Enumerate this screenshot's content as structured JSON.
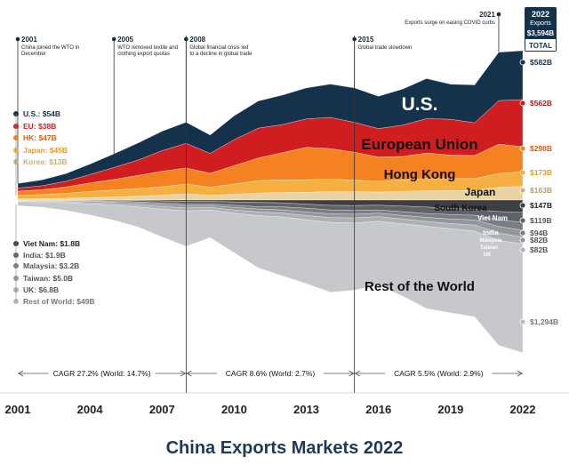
{
  "chart_data": {
    "type": "area",
    "title": "China Exports Markets 2022",
    "stacking": "streamgraph",
    "x_ticks": [
      "2001",
      "2004",
      "2007",
      "2010",
      "2013",
      "2016",
      "2019",
      "2022"
    ],
    "x": [
      2001,
      2002,
      2003,
      2004,
      2005,
      2006,
      2007,
      2008,
      2009,
      2010,
      2011,
      2012,
      2013,
      2014,
      2015,
      2016,
      2017,
      2018,
      2019,
      2020,
      2021,
      2022
    ],
    "units": "US$ billions",
    "series": [
      {
        "name": "U.S.",
        "color": "#15324d",
        "label": "U.S.",
        "start_label": "U.S.: $54B",
        "end_label": "$582B",
        "values": [
          54,
          70,
          92,
          125,
          163,
          203,
          232,
          252,
          220,
          283,
          324,
          352,
          369,
          397,
          410,
          385,
          430,
          478,
          418,
          451,
          576,
          582
        ]
      },
      {
        "name": "European Union",
        "color": "#d01e20",
        "label": "European Union",
        "start_label": "EU: $38B",
        "end_label": "$562B",
        "values": [
          38,
          47,
          67,
          100,
          143,
          183,
          245,
          293,
          236,
          311,
          356,
          334,
          339,
          371,
          356,
          339,
          372,
          409,
          428,
          390,
          518,
          562
        ]
      },
      {
        "name": "Hong Kong",
        "color": "#f58220",
        "label": "Hong Kong",
        "start_label": "HK: $47B",
        "end_label": "$298B",
        "values": [
          47,
          58,
          76,
          101,
          125,
          155,
          184,
          191,
          166,
          218,
          268,
          323,
          385,
          363,
          331,
          288,
          279,
          303,
          279,
          273,
          350,
          298
        ]
      },
      {
        "name": "Japan",
        "color": "#f6b042",
        "label": "Japan",
        "start_label": "Japan: $45B",
        "end_label": "$173B",
        "values": [
          45,
          48,
          59,
          74,
          84,
          92,
          102,
          116,
          98,
          121,
          148,
          152,
          150,
          149,
          136,
          129,
          137,
          147,
          143,
          143,
          166,
          173
        ]
      },
      {
        "name": "Korea",
        "color": "#e9d3a4",
        "label": "South Korea",
        "start_label": "Korea: $13B",
        "end_label": "$163B",
        "values": [
          13,
          16,
          20,
          28,
          35,
          45,
          56,
          74,
          54,
          69,
          83,
          88,
          91,
          100,
          101,
          94,
          103,
          109,
          111,
          113,
          149,
          163
        ]
      },
      {
        "name": "Viet Nam",
        "color": "#3d3f44",
        "label": "Viet Nam",
        "start_label": "Viet Nam: $1.8B",
        "end_label": "$147B",
        "values": [
          1.8,
          2.1,
          3.2,
          4.3,
          5.6,
          7.5,
          12,
          15,
          16,
          23,
          29,
          34,
          49,
          64,
          66,
          61,
          72,
          84,
          98,
          114,
          138,
          147
        ]
      },
      {
        "name": "India",
        "color": "#5f6268",
        "label": "India",
        "start_label": "India: $1.9B",
        "end_label": "$119B",
        "values": [
          1.9,
          2.7,
          3.3,
          5.9,
          8.9,
          14.6,
          24,
          32,
          30,
          41,
          50,
          48,
          48,
          54,
          58,
          58,
          68,
          77,
          75,
          67,
          98,
          119
        ]
      },
      {
        "name": "Malaysia",
        "color": "#7a7d83",
        "label": "Malaysia",
        "start_label": "Malaysia: $3.2B",
        "end_label": "$94B",
        "values": [
          3.2,
          5,
          6,
          8,
          11,
          14,
          18,
          21,
          20,
          24,
          28,
          37,
          46,
          46,
          44,
          38,
          42,
          45,
          52,
          56,
          79,
          94
        ]
      },
      {
        "name": "Taiwan",
        "color": "#93969c",
        "label": "Taiwan",
        "start_label": "Taiwan: $5.0B",
        "end_label": "$82B",
        "values": [
          5,
          6.6,
          9,
          13.5,
          16.5,
          21,
          23,
          26,
          21,
          30,
          35,
          37,
          41,
          46,
          45,
          40,
          44,
          49,
          55,
          60,
          78,
          82
        ]
      },
      {
        "name": "UK",
        "color": "#adb0b5",
        "label": "UK",
        "start_label": "UK: $6.8B",
        "end_label": "$82B",
        "values": [
          6.8,
          8,
          11,
          15,
          19,
          24,
          32,
          36,
          31,
          39,
          44,
          46,
          51,
          57,
          60,
          56,
          57,
          57,
          62,
          73,
          87,
          82
        ]
      },
      {
        "name": "Rest of World",
        "color": "#c7c8cb",
        "label": "Rest of the World",
        "start_label": "Rest of World: $49B",
        "end_label": "$1,294B",
        "values": [
          49,
          60,
          90,
          130,
          180,
          240,
          330,
          420,
          330,
          470,
          620,
          700,
          760,
          830,
          800,
          760,
          860,
          980,
          1000,
          1020,
          1250,
          1294
        ]
      }
    ],
    "events": [
      {
        "year": "2001",
        "text": "China joined the WTO in December"
      },
      {
        "year": "2005",
        "text": "WTO removed textile and clothing export quotas"
      },
      {
        "year": "2008",
        "text": "Global financial crisis led to a decline in global trade"
      },
      {
        "year": "2015",
        "text": "Global trade slowdown"
      },
      {
        "year": "2021",
        "text": "Exports surge on easing COVID curbs"
      }
    ],
    "total_box": {
      "line1": "2022",
      "line2": "Exports",
      "value": "$3,594B",
      "label": "TOTAL"
    },
    "cagr_periods": [
      {
        "from": 2001,
        "to": 2008,
        "text": "CAGR 27.2% (World: 14.7%)"
      },
      {
        "from": 2008,
        "to": 2015,
        "text": "CAGR 8.6% (World: 2.7%)"
      },
      {
        "from": 2015,
        "to": 2022,
        "text": "CAGR 5.5% (World: 2.9%)"
      }
    ]
  }
}
